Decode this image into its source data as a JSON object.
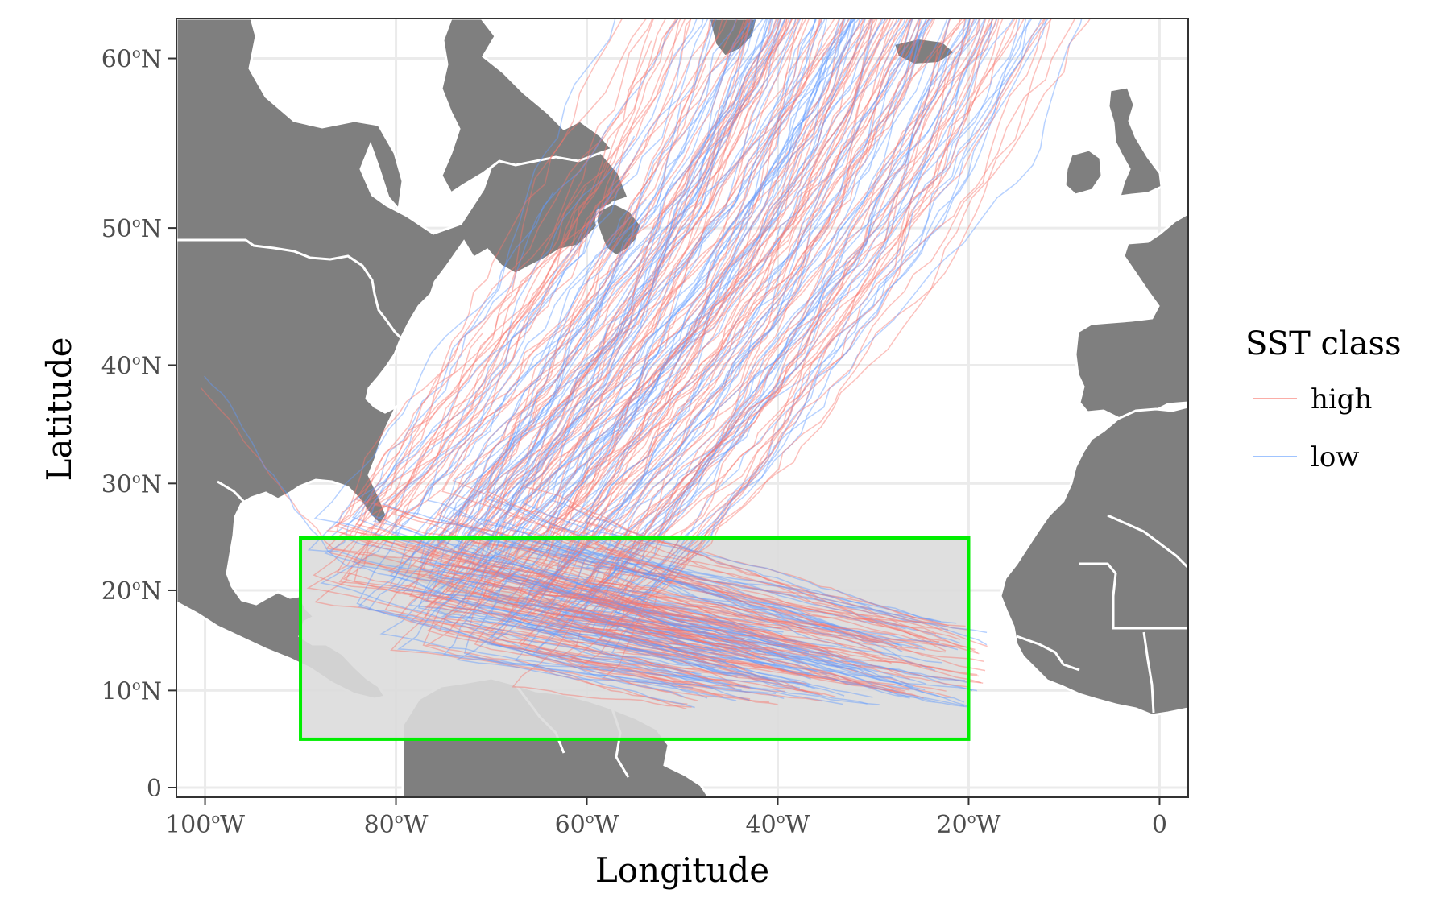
{
  "chart_data": {
    "type": "map",
    "xlabel": "Longitude",
    "ylabel": "Latitude",
    "xlim": [
      -103,
      3
    ],
    "ylim": [
      -1,
      62
    ],
    "x_ticks": [
      {
        "value": -100,
        "label": "100",
        "suffix": "W"
      },
      {
        "value": -80,
        "label": "80",
        "suffix": "W"
      },
      {
        "value": -60,
        "label": "60",
        "suffix": "W"
      },
      {
        "value": -40,
        "label": "40",
        "suffix": "W"
      },
      {
        "value": -20,
        "label": "20",
        "suffix": "W"
      },
      {
        "value": 0,
        "label": "0",
        "suffix": ""
      }
    ],
    "y_ticks": [
      {
        "value": 0,
        "label": "0",
        "suffix": ""
      },
      {
        "value": 10,
        "label": "10",
        "suffix": "N"
      },
      {
        "value": 20,
        "label": "20",
        "suffix": "N"
      },
      {
        "value": 30,
        "label": "30",
        "suffix": "N"
      },
      {
        "value": 40,
        "label": "40",
        "suffix": "N"
      },
      {
        "value": 50,
        "label": "50",
        "suffix": "N"
      },
      {
        "value": 60,
        "label": "60",
        "suffix": "N"
      }
    ],
    "grid": true,
    "legend": {
      "title": "SST class",
      "position": "right",
      "items": [
        {
          "label": "high",
          "color": "#f8766d"
        },
        {
          "label": "low",
          "color": "#619cff"
        }
      ]
    },
    "region_box": {
      "lon": [
        -90,
        -20
      ],
      "lat": [
        5,
        25
      ],
      "edge_color": "#00ee00",
      "fill": "#dcdcdc"
    },
    "colors": {
      "land": "#7f7f7f",
      "border": "#ffffff",
      "grid": "#ebebeb",
      "ocean": "#ffffff"
    },
    "track_families": [
      {
        "name": "high",
        "origin_lon": [
          -50,
          -18
        ],
        "origin_lat": [
          8,
          17
        ],
        "count": 110
      },
      {
        "name": "low",
        "origin_lon": [
          -50,
          -18
        ],
        "origin_lat": [
          8,
          17
        ],
        "count": 90
      }
    ]
  }
}
